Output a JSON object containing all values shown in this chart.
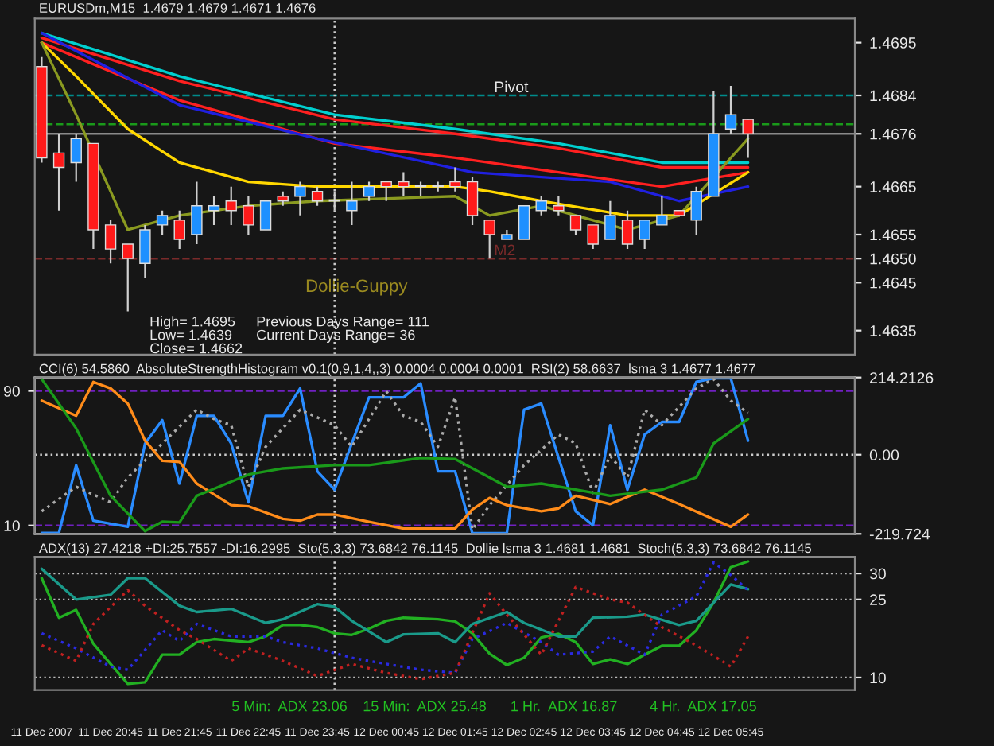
{
  "chart_data": [
    {
      "type": "candlestick",
      "title": "EURUSDm,M15  1.4679 1.4679 1.4671 1.4676",
      "tick_labels": "y",
      "x": [
        "2007-12-11T19:45",
        "2007-12-11T20:00",
        "2007-12-11T20:15",
        "2007-12-11T20:30",
        "2007-12-11T20:45",
        "2007-12-11T21:00",
        "2007-12-11T21:15",
        "2007-12-11T21:30",
        "2007-12-11T21:45",
        "2007-12-11T22:00",
        "2007-12-11T22:15",
        "2007-12-11T22:30",
        "2007-12-11T22:45",
        "2007-12-11T23:00",
        "2007-12-11T23:15",
        "2007-12-11T23:30",
        "2007-12-11T23:45",
        "2007-12-12T00:00",
        "2007-12-12T00:15",
        "2007-12-12T00:30",
        "2007-12-12T00:45",
        "2007-12-12T01:00",
        "2007-12-12T01:15",
        "2007-12-12T01:30",
        "2007-12-12T01:45",
        "2007-12-12T02:00",
        "2007-12-12T02:15",
        "2007-12-12T02:30",
        "2007-12-12T02:45",
        "2007-12-12T03:00",
        "2007-12-12T03:15",
        "2007-12-12T03:30",
        "2007-12-12T03:45",
        "2007-12-12T04:00",
        "2007-12-12T04:15",
        "2007-12-12T04:30",
        "2007-12-12T04:45",
        "2007-12-12T05:00",
        "2007-12-12T05:15",
        "2007-12-12T05:30",
        "2007-12-12T05:45",
        "2007-12-12T06:00"
      ],
      "ohlc": [
        [
          1.469,
          1.4692,
          1.467,
          1.4671
        ],
        [
          1.4672,
          1.4676,
          1.466,
          1.4669
        ],
        [
          1.467,
          1.4676,
          1.4666,
          1.4675
        ],
        [
          1.4674,
          1.4674,
          1.4652,
          1.4656
        ],
        [
          1.4657,
          1.4658,
          1.4649,
          1.4652
        ],
        [
          1.4653,
          1.4653,
          1.4639,
          1.465
        ],
        [
          1.4649,
          1.4657,
          1.4646,
          1.4656
        ],
        [
          1.4657,
          1.466,
          1.4655,
          1.4659
        ],
        [
          1.4658,
          1.466,
          1.4652,
          1.4654
        ],
        [
          1.4655,
          1.4666,
          1.4653,
          1.4661
        ],
        [
          1.466,
          1.4663,
          1.4657,
          1.4661
        ],
        [
          1.4662,
          1.4665,
          1.4657,
          1.466
        ],
        [
          1.4661,
          1.4663,
          1.4655,
          1.4657
        ],
        [
          1.4656,
          1.4662,
          1.4656,
          1.4662
        ],
        [
          1.4663,
          1.4664,
          1.4661,
          1.4662
        ],
        [
          1.4663,
          1.4666,
          1.4659,
          1.4665
        ],
        [
          1.4664,
          1.4665,
          1.4661,
          1.4662
        ],
        [
          1.4662,
          1.4664,
          1.466,
          1.4662
        ],
        [
          1.466,
          1.4666,
          1.4657,
          1.4662
        ],
        [
          1.4663,
          1.4666,
          1.4662,
          1.4665
        ],
        [
          1.4666,
          1.4666,
          1.4662,
          1.4665
        ],
        [
          1.4666,
          1.4668,
          1.4663,
          1.4665
        ],
        [
          1.4665,
          1.4666,
          1.4663,
          1.4665
        ],
        [
          1.4665,
          1.4666,
          1.4664,
          1.4665
        ],
        [
          1.4666,
          1.4669,
          1.4664,
          1.4665
        ],
        [
          1.4666,
          1.4667,
          1.4657,
          1.4659
        ],
        [
          1.4658,
          1.4658,
          1.465,
          1.4655
        ],
        [
          1.4654,
          1.4656,
          1.4654,
          1.4655
        ],
        [
          1.4654,
          1.4661,
          1.4654,
          1.4661
        ],
        [
          1.466,
          1.4663,
          1.4659,
          1.4662
        ],
        [
          1.4661,
          1.4663,
          1.4659,
          1.466
        ],
        [
          1.4659,
          1.4659,
          1.4655,
          1.4656
        ],
        [
          1.4657,
          1.4657,
          1.4652,
          1.4653
        ],
        [
          1.4654,
          1.4662,
          1.4654,
          1.4659
        ],
        [
          1.4658,
          1.466,
          1.4652,
          1.4653
        ],
        [
          1.4654,
          1.4658,
          1.4652,
          1.4658
        ],
        [
          1.4657,
          1.4663,
          1.4657,
          1.4659
        ],
        [
          1.466,
          1.466,
          1.4659,
          1.4659
        ],
        [
          1.4658,
          1.4665,
          1.4655,
          1.4664
        ],
        [
          1.4663,
          1.4685,
          1.4663,
          1.4676
        ],
        [
          1.4677,
          1.4686,
          1.4676,
          1.468
        ],
        [
          1.4679,
          1.4679,
          1.4671,
          1.4676
        ]
      ],
      "colors": [
        "#ff1a1a",
        "#ff1a1a",
        "#1e90ff",
        "#ff1a1a",
        "#ff1a1a",
        "#ff1a1a",
        "#1e90ff",
        "#1e90ff",
        "#ff1a1a",
        "#1e90ff",
        "#1e90ff",
        "#ff1a1a",
        "#ff1a1a",
        "#1e90ff",
        "#ff1a1a",
        "#1e90ff",
        "#ff1a1a",
        "#1e90ff",
        "#1e90ff",
        "#1e90ff",
        "#ff1a1a",
        "#ff1a1a",
        "#1e90ff",
        "#1e90ff",
        "#ff1a1a",
        "#ff1a1a",
        "#ff1a1a",
        "#1e90ff",
        "#1e90ff",
        "#1e90ff",
        "#ff1a1a",
        "#ff1a1a",
        "#ff1a1a",
        "#1e90ff",
        "#ff1a1a",
        "#1e90ff",
        "#1e90ff",
        "#ff1a1a",
        "#1e90ff",
        "#1e90ff",
        "#1e90ff",
        "#ff1a1a"
      ],
      "series": [
        {
          "type": "line",
          "color": "#00d0d0",
          "x": [
            "2007-12-11T19:45",
            "2007-12-11T21:45",
            "2007-12-12T00:00",
            "2007-12-12T01:45",
            "2007-12-12T03:15",
            "2007-12-12T04:45",
            "2007-12-12T06:00"
          ],
          "values": [
            1.4697,
            1.4688,
            1.468,
            1.4677,
            1.4674,
            1.467,
            1.467
          ]
        },
        {
          "type": "line",
          "color": "#ff2020",
          "x": [
            "2007-12-11T19:45",
            "2007-12-11T21:45",
            "2007-12-12T00:00",
            "2007-12-12T01:45",
            "2007-12-12T03:15",
            "2007-12-12T04:45",
            "2007-12-12T06:00"
          ],
          "values": [
            1.4696,
            1.4687,
            1.4679,
            1.4676,
            1.4673,
            1.4669,
            1.4669
          ]
        },
        {
          "type": "line",
          "color": "#ff2020",
          "x": [
            "2007-12-11T19:45",
            "2007-12-11T21:45",
            "2007-12-12T00:00",
            "2007-12-12T01:45",
            "2007-12-12T03:15",
            "2007-12-12T04:45",
            "2007-12-12T06:00"
          ],
          "values": [
            1.4695,
            1.4683,
            1.4674,
            1.4671,
            1.4668,
            1.4665,
            1.4668
          ]
        },
        {
          "type": "line",
          "color": "#2020e0",
          "x": [
            "2007-12-11T19:45",
            "2007-12-11T21:45",
            "2007-12-11T23:45",
            "2007-12-12T02:00",
            "2007-12-12T04:00",
            "2007-12-12T05:00",
            "2007-12-12T06:00"
          ],
          "values": [
            1.4697,
            1.4682,
            1.4675,
            1.4668,
            1.4666,
            1.4662,
            1.4665
          ]
        },
        {
          "type": "line",
          "color": "#ffd700",
          "x": [
            "2007-12-11T19:45",
            "2007-12-11T20:15",
            "2007-12-11T21:00",
            "2007-12-11T21:45",
            "2007-12-11T22:45",
            "2007-12-11T23:45",
            "2007-12-12T01:45",
            "2007-12-12T02:15",
            "2007-12-12T03:00",
            "2007-12-12T04:15",
            "2007-12-12T05:00",
            "2007-12-12T06:00"
          ],
          "values": [
            1.4695,
            1.4688,
            1.4677,
            1.467,
            1.4666,
            1.4665,
            1.4665,
            1.4664,
            1.4662,
            1.4659,
            1.4659,
            1.4668
          ]
        },
        {
          "type": "line",
          "color": "#8a9a20",
          "x": [
            "2007-12-11T19:45",
            "2007-12-11T20:15",
            "2007-12-11T21:00",
            "2007-12-11T21:45",
            "2007-12-11T22:45",
            "2007-12-11T23:45",
            "2007-12-12T01:45",
            "2007-12-12T02:15",
            "2007-12-12T03:00",
            "2007-12-12T04:15",
            "2007-12-12T05:00",
            "2007-12-12T06:00"
          ],
          "values": [
            1.4695,
            1.468,
            1.4656,
            1.4659,
            1.4661,
            1.4662,
            1.4663,
            1.4659,
            1.4661,
            1.4656,
            1.4659,
            1.4675
          ]
        }
      ],
      "xlim": [
        "2007-12-11T19:39",
        "2007-12-12T07:33"
      ],
      "ylim": [
        1.463,
        1.47
      ],
      "yticks": [
        1.4695,
        {
          "value": 1.4684,
          "label": "1.4684"
        },
        {
          "value": 1.4676,
          "label": "1.4676"
        },
        1.4665,
        1.4655,
        {
          "value": 1.465,
          "label": "1.4650"
        },
        1.4645,
        1.4635
      ],
      "ref_lines": [
        {
          "axis": "y",
          "value": 1.4684,
          "label": "Pivot",
          "color": "#008b8b",
          "line_style": "dashed"
        },
        {
          "axis": "y",
          "value": 1.4678,
          "color": "#1a9a1a",
          "line_style": "dashed"
        },
        {
          "axis": "y",
          "value": 1.4676,
          "color": "#8a8a8a",
          "line_style": "solid"
        },
        {
          "axis": "y",
          "value": 1.465,
          "label": "M2",
          "color": "#7a2a2a",
          "line_style": "dashed"
        },
        {
          "axis": "x",
          "value": "2007-12-12T00:00",
          "color": "#cccccc",
          "line_style": "dotted"
        }
      ],
      "annotations": [
        "High= 1.4695",
        "Previous Days Range= 111",
        "Low= 1.4639",
        "Current Days Range= 36",
        "Close= 1.4662",
        "Dollie-Guppy"
      ]
    },
    {
      "type": "line",
      "title": "CCI(6) 54.5860  AbsoluteStrengthHistogram v0.1(0,9,1,4,,3) 0.0004 0.0004 0.0001  RSI(2) 58.6637  lsma 3 1.4677 1.4677",
      "tick_labels": "y",
      "xlim": [
        "2007-12-11T19:39",
        "2007-12-12T07:33"
      ],
      "ylim": [
        -219.724,
        214.2126
      ],
      "yticks": [
        214.2126,
        {
          "value": 0,
          "label": "0.00"
        },
        -219.724
      ],
      "y2lim": [
        5,
        98
      ],
      "y2ticks": [
        90,
        10
      ],
      "series": [
        {
          "type": "line",
          "color": "#2a8cff",
          "x": [
            "2007-12-11T19:45",
            "2007-12-11T20:00",
            "2007-12-11T20:15",
            "2007-12-11T20:30",
            "2007-12-11T21:00",
            "2007-12-11T21:15",
            "2007-12-11T21:30",
            "2007-12-11T21:45",
            "2007-12-11T22:00",
            "2007-12-11T22:15",
            "2007-12-11T22:30",
            "2007-12-11T22:45",
            "2007-12-11T23:00",
            "2007-12-11T23:15",
            "2007-12-11T23:30",
            "2007-12-11T23:45",
            "2007-12-12T00:00",
            "2007-12-12T00:30",
            "2007-12-12T01:00",
            "2007-12-12T01:15",
            "2007-12-12T01:30",
            "2007-12-12T01:45",
            "2007-12-12T02:00",
            "2007-12-12T02:30",
            "2007-12-12T02:45",
            "2007-12-12T03:00",
            "2007-12-12T03:30",
            "2007-12-12T03:45",
            "2007-12-12T04:00",
            "2007-12-12T04:15",
            "2007-12-12T04:30",
            "2007-12-12T04:45",
            "2007-12-12T05:00",
            "2007-12-12T05:15",
            "2007-12-12T05:30",
            "2007-12-12T05:45",
            "2007-12-12T06:00"
          ],
          "values": [
            -217,
            -217,
            -29,
            -183,
            -200,
            31,
            96,
            -80,
            108,
            108,
            31,
            -132,
            108,
            108,
            184,
            -46,
            -97,
            159,
            159,
            198,
            -46,
            -46,
            -218,
            -218,
            125,
            142,
            -157,
            -196,
            82,
            -97,
            56,
            91,
            91,
            202,
            212,
            212,
            39
          ]
        },
        {
          "type": "line",
          "color": "#aaaaaa",
          "line_style": "dotted",
          "x": [
            "2007-12-11T19:45",
            "2007-12-11T20:15",
            "2007-12-11T20:45",
            "2007-12-11T21:00",
            "2007-12-11T21:30",
            "2007-12-11T22:00",
            "2007-12-11T22:15",
            "2007-12-11T22:30",
            "2007-12-11T22:45",
            "2007-12-11T23:00",
            "2007-12-11T23:30",
            "2007-12-12T00:00",
            "2007-12-12T00:15",
            "2007-12-12T00:45",
            "2007-12-12T01:00",
            "2007-12-12T01:15",
            "2007-12-12T01:30",
            "2007-12-12T01:45",
            "2007-12-12T02:00",
            "2007-12-12T02:15",
            "2007-12-12T02:45",
            "2007-12-12T03:15",
            "2007-12-12T03:30",
            "2007-12-12T03:45",
            "2007-12-12T04:00",
            "2007-12-12T04:15",
            "2007-12-12T04:30",
            "2007-12-12T04:45",
            "2007-12-12T05:15",
            "2007-12-12T05:30",
            "2007-12-12T05:45",
            "2007-12-12T06:00"
          ],
          "values": [
            -157,
            -89,
            -132,
            -63,
            31,
            125,
            99,
            82,
            -89,
            22,
            125,
            82,
            22,
            176,
            108,
            91,
            22,
            159,
            -208,
            -140,
            -29,
            56,
            31,
            -106,
            -3,
            -63,
            125,
            82,
            184,
            210,
            150,
            116
          ]
        },
        {
          "type": "line",
          "color": "#ff8c1a",
          "x": [
            "2007-12-11T19:45",
            "2007-12-11T20:15",
            "2007-12-11T20:30",
            "2007-12-11T20:45",
            "2007-12-11T21:00",
            "2007-12-11T21:15",
            "2007-12-11T21:30",
            "2007-12-11T21:45",
            "2007-12-11T22:00",
            "2007-12-11T22:30",
            "2007-12-11T22:45",
            "2007-12-11T23:15",
            "2007-12-11T23:30",
            "2007-12-11T23:45",
            "2007-12-12T00:00",
            "2007-12-12T00:30",
            "2007-12-12T01:00",
            "2007-12-12T01:45",
            "2007-12-12T02:00",
            "2007-12-12T02:15",
            "2007-12-12T02:30",
            "2007-12-12T03:00",
            "2007-12-12T03:15",
            "2007-12-12T03:30",
            "2007-12-12T04:00",
            "2007-12-12T04:30",
            "2007-12-12T05:00",
            "2007-12-12T05:45",
            "2007-12-12T06:00"
          ],
          "values": [
            150,
            108,
            202,
            184,
            142,
            39,
            -17,
            -20,
            -80,
            -140,
            -143,
            -178,
            -183,
            -166,
            -166,
            -186,
            -205,
            -205,
            -152,
            -120,
            -140,
            -157,
            -149,
            -114,
            -137,
            -97,
            -137,
            -200,
            -166
          ]
        },
        {
          "type": "line",
          "color": "#1a9a1a",
          "x": [
            "2007-12-11T19:45",
            "2007-12-11T20:15",
            "2007-12-11T20:45",
            "2007-12-11T21:15",
            "2007-12-11T21:30",
            "2007-12-11T21:45",
            "2007-12-11T22:00",
            "2007-12-11T22:45",
            "2007-12-11T23:15",
            "2007-12-12T00:00",
            "2007-12-12T00:30",
            "2007-12-12T01:15",
            "2007-12-12T01:45",
            "2007-12-12T02:30",
            "2007-12-12T03:00",
            "2007-12-12T03:30",
            "2007-12-12T04:00",
            "2007-12-12T04:45",
            "2007-12-12T05:15",
            "2007-12-12T05:30",
            "2007-12-12T06:00"
          ],
          "values": [
            210,
            73,
            -114,
            -212,
            -186,
            -188,
            -114,
            -55,
            -38,
            -29,
            -29,
            -9,
            -12,
            -89,
            -80,
            -97,
            -114,
            -97,
            -63,
            31,
            99
          ]
        }
      ],
      "ref_lines": [
        {
          "axis": "y2",
          "value": 90,
          "color": "#7020c0",
          "line_style": "dashed"
        },
        {
          "axis": "y2",
          "value": 10,
          "color": "#7020c0",
          "line_style": "dashed"
        },
        {
          "axis": "y",
          "value": 0,
          "color": "#cccccc",
          "line_style": "dotted"
        },
        {
          "axis": "x",
          "value": "2007-12-12T00:00",
          "color": "#cccccc",
          "line_style": "dotted"
        }
      ]
    },
    {
      "type": "line",
      "title": "ADX(13) 27.4218 +DI:25.7557 -DI:16.2995  Sto(5,3,3) 73.6842 76.1145  Dollie lsma 3 1.4681 1.4681  Stoch(5,3,3) 73.6842 76.1145",
      "xlim": [
        "2007-12-11T19:39",
        "2007-12-12T07:33"
      ],
      "xticks": [
        {
          "value": "2007-12-11T19:45",
          "label": "11 Dec 2007"
        },
        {
          "value": "2007-12-11T20:45",
          "label": "11 Dec 20:45"
        },
        {
          "value": "2007-12-11T21:45",
          "label": "11 Dec 21:45"
        },
        {
          "value": "2007-12-11T22:45",
          "label": "11 Dec 22:45"
        },
        {
          "value": "2007-12-11T23:45",
          "label": "11 Dec 23:45"
        },
        {
          "value": "2007-12-12T00:45",
          "label": "12 Dec 00:45"
        },
        {
          "value": "2007-12-12T01:45",
          "label": "12 Dec 01:45"
        },
        {
          "value": "2007-12-12T02:45",
          "label": "12 Dec 02:45"
        },
        {
          "value": "2007-12-12T03:45",
          "label": "12 Dec 03:45"
        },
        {
          "value": "2007-12-12T04:45",
          "label": "12 Dec 04:45"
        },
        {
          "value": "2007-12-12T05:45",
          "label": "12 Dec 05:45"
        }
      ],
      "ylim": [
        7.6,
        33.2
      ],
      "yticks": [
        30,
        25,
        10
      ],
      "grid": "y",
      "series": [
        {
          "type": "line",
          "color": "#22b022",
          "x": [
            "2007-12-11T19:45",
            "2007-12-11T20:00",
            "2007-12-11T20:15",
            "2007-12-11T20:30",
            "2007-12-11T20:45",
            "2007-12-11T21:00",
            "2007-12-11T21:15",
            "2007-12-11T21:30",
            "2007-12-11T21:45",
            "2007-12-11T22:00",
            "2007-12-11T22:15",
            "2007-12-11T22:45",
            "2007-12-11T23:00",
            "2007-12-11T23:15",
            "2007-12-11T23:30",
            "2007-12-11T23:45",
            "2007-12-12T00:00",
            "2007-12-12T00:15",
            "2007-12-12T00:30",
            "2007-12-12T00:45",
            "2007-12-12T01:00",
            "2007-12-12T01:30",
            "2007-12-12T01:45",
            "2007-12-12T02:00",
            "2007-12-12T02:15",
            "2007-12-12T02:30",
            "2007-12-12T02:45",
            "2007-12-12T03:00",
            "2007-12-12T03:15",
            "2007-12-12T03:30",
            "2007-12-12T03:45",
            "2007-12-12T04:00",
            "2007-12-12T04:15",
            "2007-12-12T04:30",
            "2007-12-12T04:45",
            "2007-12-12T05:00",
            "2007-12-12T05:15",
            "2007-12-12T05:30",
            "2007-12-12T05:45",
            "2007-12-12T06:00"
          ],
          "values": [
            29.1,
            21.5,
            23.0,
            16.5,
            12.6,
            8.8,
            9.1,
            14.4,
            14.4,
            16.8,
            17.4,
            16.8,
            17.9,
            20.1,
            20.1,
            19.7,
            18.5,
            18.2,
            19.4,
            20.9,
            21.5,
            21.2,
            20.8,
            18.5,
            14.6,
            12.4,
            13.8,
            17.7,
            18.4,
            16.8,
            12.6,
            13.5,
            12.6,
            14.4,
            16.1,
            16.1,
            19.1,
            24.4,
            31.2,
            32.3
          ]
        },
        {
          "type": "line",
          "color": "#1a9a8a",
          "x": [
            "2007-12-11T19:45",
            "2007-12-11T20:15",
            "2007-12-11T20:45",
            "2007-12-11T21:00",
            "2007-12-11T21:15",
            "2007-12-11T21:45",
            "2007-12-11T22:00",
            "2007-12-11T22:30",
            "2007-12-11T23:00",
            "2007-12-11T23:15",
            "2007-12-11T23:45",
            "2007-12-12T00:00",
            "2007-12-12T00:15",
            "2007-12-12T00:45",
            "2007-12-12T01:00",
            "2007-12-12T01:30",
            "2007-12-12T01:45",
            "2007-12-12T02:00",
            "2007-12-12T02:30",
            "2007-12-12T02:45",
            "2007-12-12T03:15",
            "2007-12-12T03:30",
            "2007-12-12T03:45",
            "2007-12-12T04:15",
            "2007-12-12T04:30",
            "2007-12-12T05:00",
            "2007-12-12T05:15",
            "2007-12-12T05:45",
            "2007-12-12T06:00"
          ],
          "values": [
            30.9,
            25.0,
            25.9,
            29.1,
            29.1,
            23.8,
            22.6,
            23.2,
            20.5,
            21.2,
            24.1,
            23.6,
            20.9,
            16.8,
            18.3,
            18.5,
            16.8,
            20.3,
            22.6,
            20.5,
            17.9,
            17.9,
            21.5,
            21.7,
            22.1,
            20.1,
            20.9,
            27.9,
            27.0
          ]
        },
        {
          "type": "line",
          "color": "#2a2ae0",
          "line_style": "dotted",
          "x": [
            "2007-12-11T19:45",
            "2007-12-11T20:15",
            "2007-12-11T20:45",
            "2007-12-11T21:00",
            "2007-12-11T21:30",
            "2007-12-11T21:45",
            "2007-12-11T22:00",
            "2007-12-11T22:30",
            "2007-12-11T23:00",
            "2007-12-11T23:15",
            "2007-12-11T23:45",
            "2007-12-12T00:15",
            "2007-12-12T00:45",
            "2007-12-12T01:15",
            "2007-12-12T01:45",
            "2007-12-12T02:00",
            "2007-12-12T02:30",
            "2007-12-12T03:00",
            "2007-12-12T03:15",
            "2007-12-12T03:45",
            "2007-12-12T04:00",
            "2007-12-12T04:30",
            "2007-12-12T04:45",
            "2007-12-12T05:15",
            "2007-12-12T05:30",
            "2007-12-12T05:45",
            "2007-12-12T06:00"
          ],
          "values": [
            18.5,
            15.6,
            12.1,
            11.5,
            19.1,
            17.0,
            20.3,
            17.9,
            17.9,
            16.8,
            15.6,
            13.8,
            12.6,
            11.5,
            10.9,
            17.4,
            20.5,
            16.8,
            14.4,
            15.0,
            17.9,
            14.4,
            22.1,
            25.6,
            32.1,
            29.7,
            26.8
          ]
        },
        {
          "type": "line",
          "color": "#c02020",
          "line_style": "dotted",
          "x": [
            "2007-12-11T19:45",
            "2007-12-11T20:15",
            "2007-12-11T20:30",
            "2007-12-11T21:00",
            "2007-12-11T21:15",
            "2007-12-11T21:45",
            "2007-12-11T22:00",
            "2007-12-11T22:30",
            "2007-12-11T22:45",
            "2007-12-11T23:15",
            "2007-12-11T23:45",
            "2007-12-12T00:15",
            "2007-12-12T00:45",
            "2007-12-12T01:15",
            "2007-12-12T01:45",
            "2007-12-12T02:15",
            "2007-12-12T02:30",
            "2007-12-12T03:00",
            "2007-12-12T03:30",
            "2007-12-12T04:00",
            "2007-12-12T04:15",
            "2007-12-12T04:45",
            "2007-12-12T05:15",
            "2007-12-12T05:45",
            "2007-12-12T06:00"
          ],
          "values": [
            16.2,
            13.2,
            20.3,
            26.8,
            23.8,
            19.1,
            17.4,
            13.2,
            15.6,
            13.2,
            10.3,
            12.6,
            10.9,
            9.7,
            10.9,
            26.2,
            22.1,
            14.4,
            27.4,
            25.0,
            24.4,
            19.7,
            16.2,
            12.1,
            17.9
          ]
        }
      ],
      "ref_lines": [
        {
          "axis": "x",
          "value": "2007-12-12T00:00",
          "color": "#cccccc",
          "line_style": "dotted"
        }
      ],
      "annotations": [
        "5 Min:  ADX 23.06",
        "15 Min:  ADX 25.48",
        "1 Hr.  ADX 16.87",
        "4 Hr.  ADX 17.05"
      ]
    }
  ]
}
